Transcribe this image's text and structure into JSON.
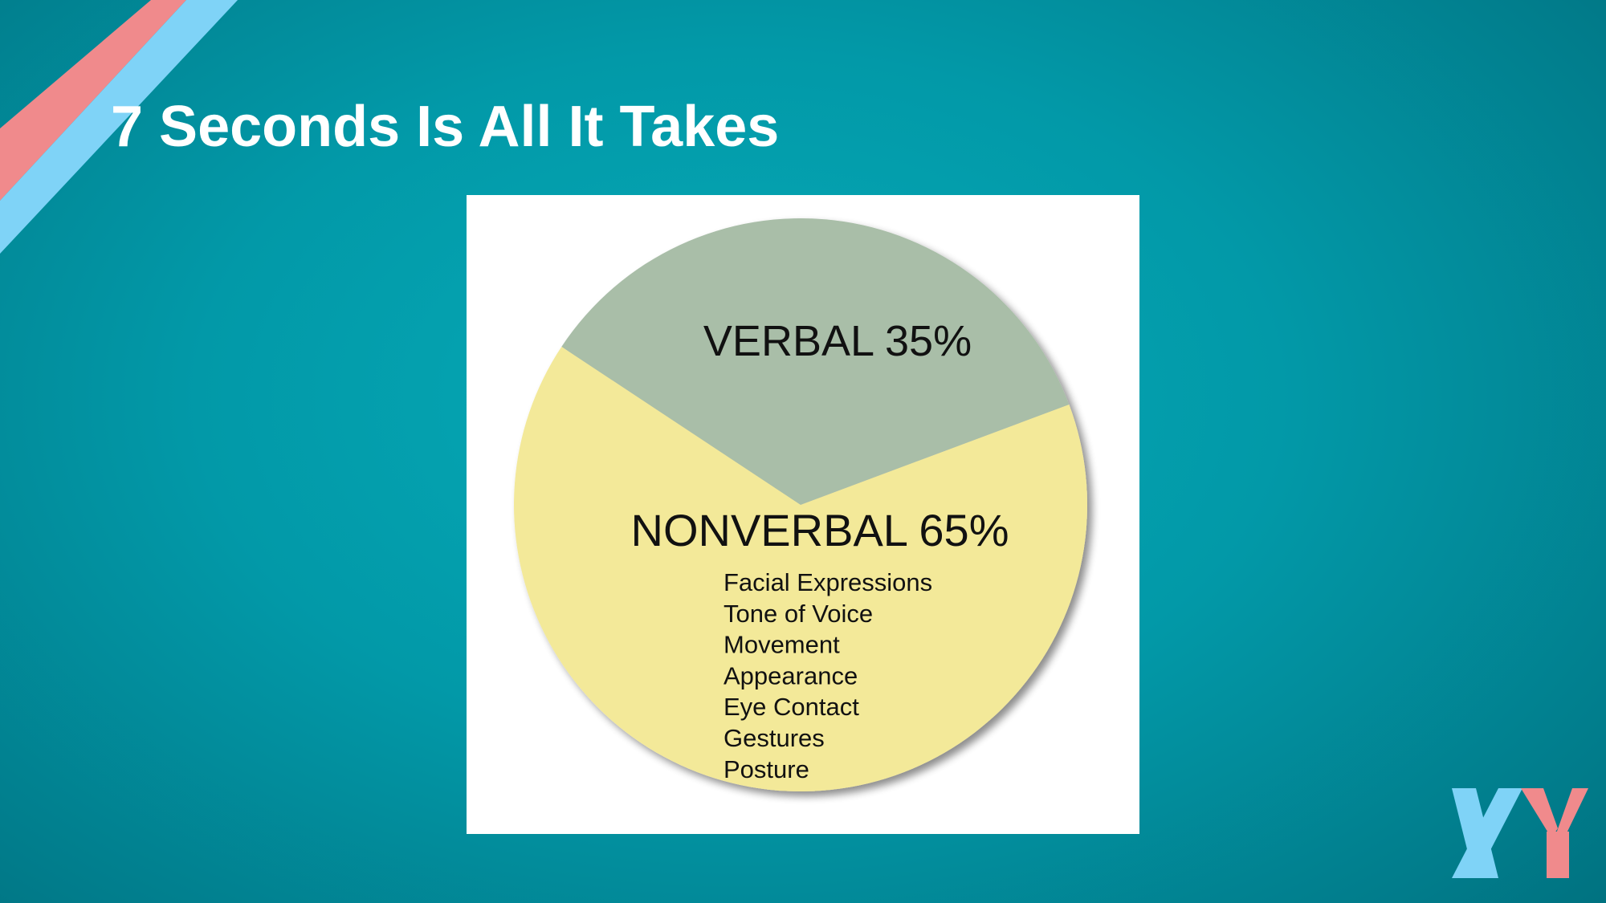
{
  "slide": {
    "title": "7 Seconds Is All It Takes",
    "logo_text": "XY"
  },
  "colors": {
    "background": "#0299a8",
    "stripe_pink": "#f08a8c",
    "stripe_blue": "#7fd3f7",
    "logo_x": "#7fd3f7",
    "logo_y": "#f08a8c",
    "verbal_slice": "#a9bea8",
    "nonverbal_slice": "#f3e999"
  },
  "chart_data": {
    "type": "pie",
    "title": "",
    "slices": [
      {
        "label": "VERBAL 35%",
        "value": 35,
        "color": "#a9bea8"
      },
      {
        "label": "NONVERBAL 65%",
        "value": 65,
        "color": "#f3e999",
        "annotations": [
          "Facial Expressions",
          "Tone of Voice",
          "Movement",
          "Appearance",
          "Eye Contact",
          "Gestures",
          "Posture"
        ]
      }
    ],
    "legend": "none"
  }
}
